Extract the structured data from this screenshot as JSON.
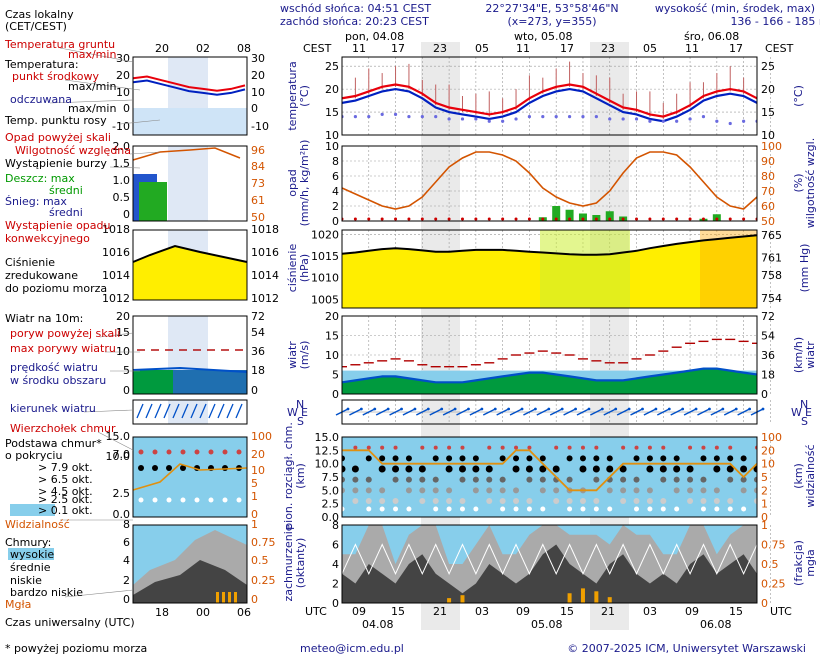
{
  "header": {
    "sunrise": "wschód słońca: 04:51 CEST",
    "sunset": "zachód słońca: 20:23 CEST",
    "coords": "22°27'34\"E, 53°58'46\"N",
    "grid": "(x=273, y=355)",
    "height_title": "wysokość (min, środek, max)",
    "height_values": "136 - 166 - 185 m"
  },
  "time_axis": {
    "top_label": "CEST",
    "bottom_label": "UTC",
    "days_top": [
      "pon, 04.08",
      "wto, 05.08",
      "śro, 06.08"
    ],
    "hours_top": [
      "11",
      "17",
      "23",
      "05",
      "11",
      "17",
      "23",
      "05",
      "11",
      "17"
    ],
    "hours_bottom": [
      "09",
      "15",
      "21",
      "03",
      "09",
      "15",
      "21",
      "03",
      "09",
      "15"
    ],
    "dates_bottom": [
      "04.08",
      "05.08",
      "06.08"
    ]
  },
  "legend": {
    "time_local": "Czas lokalny",
    "time_local_sub": "(CET/CEST)",
    "legend_hours_top": [
      "20",
      "02",
      "08"
    ],
    "legend_hours_bottom": [
      "18",
      "00",
      "06"
    ],
    "temp_ground": "Temperatura gruntu",
    "temp_ground_sub": "max/min",
    "temperature": "Temperatura:",
    "mid_point": "punkt środkowy",
    "max_min": "max/min",
    "perceived": "odczuwana",
    "max_min2": "max/min",
    "dew_point": "Temp. punktu rosy",
    "precip_over": "Opad powyżej skali",
    "humidity": "Wilgotność względna",
    "storm": "Wystąpienie burzy",
    "rain": "Deszcz: max",
    "rain_mean": "średni",
    "snow": "Śnieg: max",
    "snow_mean": "średni",
    "precip_occur": "Wystąpienie opadu",
    "precip_occur2": "konwekcyjnego",
    "pressure": "Ciśnienie",
    "pressure2": "zredukowane",
    "pressure3": "do poziomu morza",
    "wind10": "Wiatr na 10m:",
    "gust_over": "poryw powyżej skali",
    "gust_max": "max porywy wiatru",
    "wind_mean": "prędkość wiatru",
    "wind_mean2": "w środku obszaru",
    "wind_dir": "kierunek wiatru",
    "cloud_top": "Wierzchołek chmur",
    "cloud_base": "Podstawa chmur*",
    "cloud_base2": "o pokryciu",
    "okt79": "> 7.9 okt.",
    "okt65": "> 6.5 okt.",
    "okt45": "> 4.5 okt.",
    "okt25": "> 2.5 okt.",
    "okt01": "> 0.1 okt.",
    "visibility": "Widzialność",
    "clouds": "Chmury:",
    "high": "wysokie",
    "middle": "średnie",
    "low": "niskie",
    "very_low": "bardzo niskie",
    "fog": "Mgła",
    "utc": "Czas uniwersalny (UTC)",
    "footnote": "* powyżej poziomu morza"
  },
  "axis_titles": {
    "temp_left": "temperatura",
    "temp_left_unit": "(°C)",
    "temp_right": "(°C)",
    "precip_left": "opad",
    "precip_left_unit": "(mm/h, kg/m²h)",
    "humid_right": "wilgotność wzgl.",
    "humid_right_unit": "(%)",
    "press_left": "ciśnienie",
    "press_left_unit": "(hPa)",
    "press_right_unit": "(mm Hg)",
    "wind_left": "wiatr",
    "wind_left_unit": "(m/s)",
    "wind_right": "wiatr",
    "wind_right_unit": "(km/h)",
    "compass_n": "N",
    "compass_w": "W",
    "compass_e": "E",
    "compass_s": "S",
    "cloud_left": "pion. rozciągł. chm.",
    "cloud_left_unit": "(km)",
    "vis_right": "widzialność",
    "vis_right_unit": "(km)",
    "cover_left": "zachmurzenie",
    "cover_left_unit": "(oktanty)",
    "fog_right": "mgła",
    "fog_right_unit": "(frakcja)"
  },
  "footer": {
    "email": "meteo@icm.edu.pl",
    "copyright": "© 2007-2025 ICM, Uniwersytet Warszawski"
  },
  "colors": {
    "temp": "#e8000b",
    "perceived": "#0020c0",
    "dew": "#6a6ae0",
    "humidity": "#d35400",
    "pressure_fill": "#ffee00",
    "wind_fill": "#009a3e",
    "wind_blue": "#0050c8",
    "gust": "#b00000",
    "sky": "#87ceeb",
    "night": "#d8d8d8"
  },
  "chart_data": [
    {
      "type": "line",
      "title": "temperatura",
      "ylabel": "(°C)",
      "ylim": [
        10,
        27
      ],
      "yticks": [
        10,
        15,
        20,
        25
      ],
      "series": [
        {
          "name": "punkt środkowy",
          "values": [
            18,
            18.5,
            19.5,
            20.5,
            21,
            20.5,
            19,
            17,
            16,
            15.5,
            15,
            14.5,
            15,
            16,
            18,
            19.5,
            20.5,
            21,
            20.5,
            19,
            17.5,
            16,
            15.5,
            14.5,
            14,
            15,
            16.5,
            18.5,
            19.5,
            20,
            19.5,
            18
          ]
        },
        {
          "name": "odczuwana",
          "values": [
            17,
            17.5,
            18.5,
            19.5,
            20,
            19.5,
            18,
            16,
            15,
            14.5,
            14,
            13.5,
            14,
            15,
            17,
            18.5,
            19.5,
            20,
            19.5,
            18,
            16.5,
            15,
            14.5,
            13.5,
            13,
            14,
            15.5,
            17.5,
            18.5,
            19,
            18.5,
            17
          ]
        },
        {
          "name": "Temp. punktu rosy",
          "values": [
            14,
            14,
            14,
            14.5,
            14.5,
            14,
            14,
            14,
            13.5,
            13.5,
            13.5,
            13,
            13,
            13.5,
            14,
            14,
            14,
            14,
            14,
            14,
            13.5,
            13.5,
            13.5,
            13,
            13,
            13,
            13.5,
            14,
            13,
            12.5,
            13,
            13
          ]
        }
      ]
    },
    {
      "type": "line",
      "title": "wilgotność wzgl.",
      "ylabel": "(%)",
      "ylim": [
        50,
        100
      ],
      "yticks": [
        50,
        60,
        70,
        80,
        90,
        100
      ],
      "series": [
        {
          "name": "Wilgotność względna",
          "values": [
            72,
            68,
            64,
            60,
            58,
            60,
            66,
            76,
            86,
            92,
            96,
            96,
            94,
            90,
            82,
            72,
            66,
            62,
            60,
            62,
            70,
            82,
            92,
            96,
            96,
            94,
            86,
            76,
            66,
            60,
            58,
            66
          ]
        }
      ]
    },
    {
      "type": "area",
      "title": "ciśnienie",
      "ylabel": "(hPa)",
      "ylim": [
        1003,
        1021
      ],
      "yticks": [
        1005,
        1010,
        1015,
        1020
      ],
      "series": [
        {
          "name": "Ciśnienie",
          "values": [
            1015.5,
            1015.8,
            1016.2,
            1016.6,
            1016.8,
            1016.6,
            1016.3,
            1016,
            1016,
            1016.2,
            1016.4,
            1016.4,
            1016.4,
            1016.2,
            1016,
            1015.8,
            1015.6,
            1015.4,
            1015.3,
            1015.3,
            1015.4,
            1015.8,
            1016.2,
            1016.8,
            1017.3,
            1017.8,
            1018.2,
            1018.6,
            1018.9,
            1019.2,
            1019.5,
            1019.8
          ]
        }
      ]
    },
    {
      "type": "area",
      "title": "wiatr",
      "ylabel": "(m/s)",
      "ylim": [
        0,
        20
      ],
      "yticks": [
        0,
        5,
        10,
        15,
        20
      ],
      "series": [
        {
          "name": "prędkość wiatru",
          "values": [
            3,
            3.5,
            4,
            4.5,
            4.5,
            4,
            3.5,
            3,
            3,
            3,
            3.5,
            4,
            4.5,
            5,
            5.5,
            5.5,
            5,
            4.5,
            4,
            3.5,
            3.5,
            3.5,
            4,
            4.5,
            5,
            5.5,
            6,
            6.5,
            6.5,
            6,
            5.5,
            5
          ]
        },
        {
          "name": "max porywy wiatru",
          "values": [
            7,
            7.5,
            8,
            8.5,
            9,
            8.5,
            7.5,
            7,
            7,
            7,
            7.5,
            8,
            9,
            10,
            10.5,
            11,
            10.5,
            10,
            9,
            8.5,
            8,
            8,
            9,
            10,
            11,
            12,
            13,
            13.5,
            14,
            14,
            13.5,
            13
          ]
        }
      ]
    },
    {
      "type": "line",
      "title": "widzialność",
      "ylabel": "(km)",
      "ylim": [
        0,
        100
      ],
      "yticks": [
        0,
        1,
        2,
        5,
        10,
        20,
        100
      ],
      "series": [
        {
          "name": "Widzialność",
          "values": [
            20,
            20,
            20,
            15,
            10,
            10,
            10,
            10,
            10,
            10,
            10,
            10,
            15,
            20,
            20,
            10,
            5,
            2,
            2,
            2,
            5,
            10,
            10,
            10,
            10,
            10,
            10,
            10,
            10,
            10,
            5,
            10
          ]
        }
      ]
    },
    {
      "type": "area",
      "title": "zachmurzenie",
      "ylabel": "(oktanty)",
      "ylim": [
        0,
        8
      ],
      "yticks": [
        0,
        2,
        4,
        6,
        8
      ],
      "series": [
        {
          "name": "niskie",
          "values": [
            3,
            2,
            4,
            3,
            2,
            4,
            5,
            3,
            2,
            1,
            2,
            4,
            3,
            2,
            3,
            5,
            6,
            4,
            3,
            2,
            4,
            5,
            3,
            2,
            3,
            2,
            4,
            5,
            3,
            4,
            5,
            3
          ]
        }
      ]
    }
  ]
}
